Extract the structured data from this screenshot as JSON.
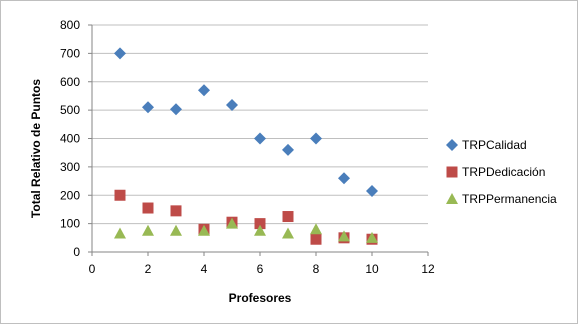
{
  "chart_data": {
    "type": "scatter",
    "xlabel": "Profesores",
    "ylabel": "Total Relativo de Puntos",
    "xlim": [
      0,
      12
    ],
    "ylim": [
      0,
      800
    ],
    "x_ticks": [
      0,
      2,
      4,
      6,
      8,
      10,
      12
    ],
    "y_ticks": [
      0,
      100,
      200,
      300,
      400,
      500,
      600,
      700,
      800
    ],
    "grid": "horizontal",
    "legend_position": "right",
    "series": [
      {
        "name": "TRPCalidad",
        "marker": "diamond",
        "color": "#4a7ebb",
        "x": [
          1,
          2,
          3,
          4,
          5,
          6,
          7,
          8,
          9,
          10
        ],
        "y": [
          700,
          510,
          503,
          570,
          518,
          400,
          360,
          400,
          260,
          215
        ]
      },
      {
        "name": "TRPDedicación",
        "marker": "square",
        "color": "#be4b48",
        "x": [
          1,
          2,
          3,
          4,
          5,
          6,
          7,
          8,
          9,
          10
        ],
        "y": [
          200,
          155,
          145,
          80,
          105,
          100,
          125,
          45,
          50,
          45
        ]
      },
      {
        "name": "TRPPermanencia",
        "marker": "triangle",
        "color": "#98b954",
        "x": [
          1,
          2,
          3,
          4,
          5,
          6,
          7,
          8,
          9,
          10
        ],
        "y": [
          65,
          75,
          75,
          75,
          100,
          75,
          65,
          80,
          55,
          50
        ]
      }
    ]
  }
}
